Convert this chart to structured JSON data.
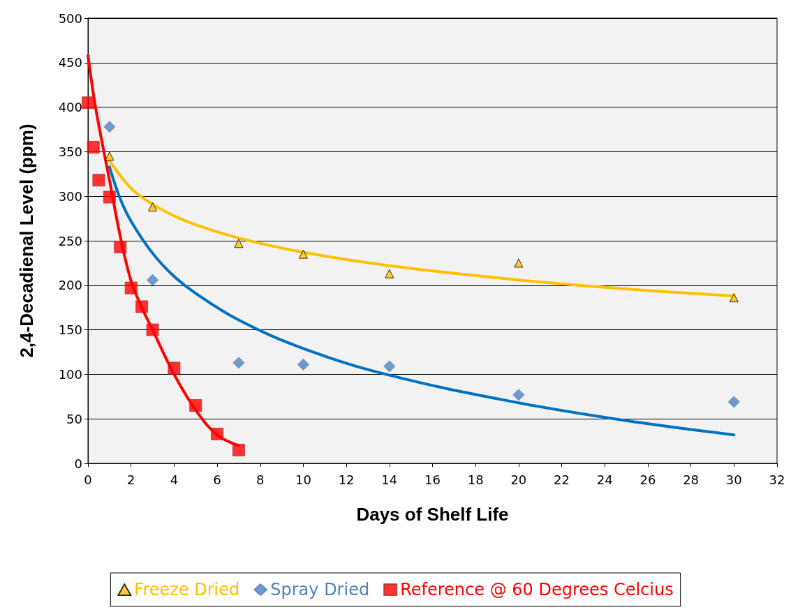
{
  "chart_data": {
    "type": "scatter",
    "xlabel": "Days of Shelf Life",
    "ylabel": "2,4-Decadienal Level (ppm)",
    "xlim": [
      0,
      32
    ],
    "xticks": [
      0,
      2,
      4,
      6,
      8,
      10,
      12,
      14,
      16,
      18,
      20,
      22,
      24,
      26,
      28,
      30,
      32
    ],
    "ylim": [
      0,
      500
    ],
    "yticks": [
      0,
      50,
      100,
      150,
      200,
      250,
      300,
      350,
      400,
      450,
      500
    ],
    "grid": "y",
    "legend": "bottom",
    "series": [
      {
        "name": "Freeze Dried",
        "type": "scatter",
        "marker": "triangle",
        "color": "#ffc000",
        "x": [
          1,
          3,
          7,
          10,
          14,
          20,
          30
        ],
        "values": [
          345,
          288,
          247,
          235,
          213,
          225,
          186
        ]
      },
      {
        "name": "Spray Dried",
        "type": "scatter",
        "marker": "diamond",
        "color": "#4f81bd",
        "x": [
          1,
          3,
          7,
          10,
          14,
          20,
          30
        ],
        "values": [
          378,
          206,
          113,
          111,
          109,
          77,
          69
        ]
      },
      {
        "name": "Reference @ 60 Degrees Celcius",
        "type": "scatter",
        "marker": "square",
        "color": "#ff0000",
        "x": [
          0,
          0.25,
          0.5,
          1,
          1.5,
          2,
          2.5,
          3,
          4,
          5,
          6,
          7
        ],
        "values": [
          405,
          355,
          318,
          299,
          243,
          197,
          176,
          150,
          107,
          65,
          33,
          15
        ]
      },
      {
        "type": "line",
        "marker": "none",
        "color": "#ffc000",
        "x": [
          1,
          2,
          3,
          4,
          5,
          7,
          10,
          14,
          20,
          25,
          30
        ],
        "values": [
          340,
          309,
          291,
          278,
          268,
          253,
          237,
          222,
          206,
          196,
          188
        ]
      },
      {
        "type": "line",
        "marker": "none",
        "color": "#0070c0",
        "x": [
          1,
          1.5,
          2,
          3,
          4,
          5,
          7,
          10,
          14,
          20,
          25,
          30
        ],
        "values": [
          333,
          297,
          272,
          236,
          210,
          191,
          161,
          129,
          99,
          68,
          48,
          32
        ]
      },
      {
        "type": "line",
        "marker": "none",
        "color": "#ff0000",
        "x": [
          0,
          0.25,
          0.5,
          1,
          1.5,
          2,
          2.5,
          3,
          4,
          5,
          6,
          7
        ],
        "values": [
          458,
          415,
          380,
          318,
          255,
          205,
          175,
          150,
          100,
          60,
          32,
          20
        ]
      }
    ]
  }
}
